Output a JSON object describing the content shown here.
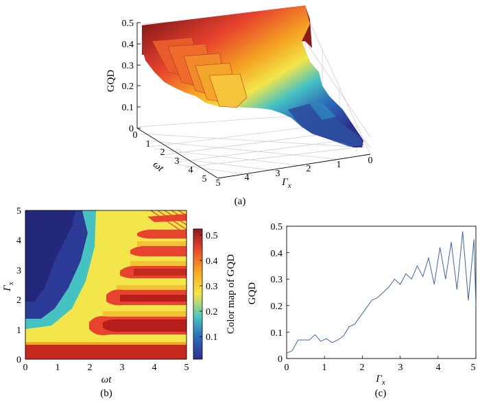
{
  "panels": {
    "a": {
      "caption": "(a)"
    },
    "b": {
      "caption": "(b)"
    },
    "c": {
      "caption": "(c)"
    }
  },
  "chart_data": [
    {
      "id": "a",
      "type": "surface3d",
      "xlabel": "ωt",
      "ylabel": "Γx",
      "zlabel": "GQD",
      "x_ticks": [
        "0",
        "1",
        "2",
        "3",
        "4",
        "5"
      ],
      "y_ticks": [
        "5",
        "4",
        "3",
        "2",
        "1",
        "0"
      ],
      "z_ticks": [
        "0",
        "0.1",
        "0.2",
        "0.3",
        "0.4",
        "0.5"
      ],
      "xlim": [
        0,
        5
      ],
      "ylim": [
        0,
        5
      ],
      "zlim": [
        0,
        0.5
      ],
      "colormap": [
        "#2b2f8f",
        "#2e86c1",
        "#45c2c2",
        "#f2e64a",
        "#f5a623",
        "#e8432e",
        "#8b1a1a"
      ],
      "grid": true
    },
    {
      "id": "b",
      "type": "heatmap",
      "xlabel": "ωt",
      "ylabel": "Γx",
      "colorbar_label": "Color map of GQD",
      "x_ticks": [
        "0",
        "1",
        "2",
        "3",
        "4",
        "5"
      ],
      "y_ticks": [
        "0",
        "1",
        "2",
        "3",
        "4",
        "5"
      ],
      "colorbar_ticks": [
        "0.1",
        "0.2",
        "0.3",
        "0.4",
        "0.5"
      ],
      "xlim": [
        0,
        5
      ],
      "ylim": [
        0,
        5
      ],
      "clim": [
        0,
        0.52
      ],
      "colormap": [
        "#2b2f8f",
        "#2e86c1",
        "#45c2c2",
        "#f2e64a",
        "#f5a623",
        "#e8432e",
        "#8b1a1a"
      ]
    },
    {
      "id": "c",
      "type": "line",
      "xlabel": "Γx",
      "ylabel": "GQD",
      "x_ticks": [
        "0",
        "1",
        "2",
        "3",
        "4",
        "5"
      ],
      "y_ticks": [
        "0",
        "0.1",
        "0.2",
        "0.3",
        "0.4",
        "0.5"
      ],
      "xlim": [
        0,
        5
      ],
      "ylim": [
        0,
        0.5
      ],
      "line_color": "#3b63b0",
      "x": [
        0,
        0.15,
        0.3,
        0.45,
        0.6,
        0.75,
        0.9,
        1.05,
        1.2,
        1.35,
        1.5,
        1.65,
        1.8,
        1.95,
        2.1,
        2.25,
        2.4,
        2.55,
        2.7,
        2.85,
        3.0,
        3.15,
        3.3,
        3.45,
        3.6,
        3.75,
        3.9,
        4.05,
        4.2,
        4.35,
        4.5,
        4.65,
        4.8,
        4.95,
        5.0
      ],
      "y": [
        0.02,
        0.03,
        0.07,
        0.07,
        0.07,
        0.09,
        0.065,
        0.075,
        0.06,
        0.07,
        0.085,
        0.12,
        0.13,
        0.16,
        0.19,
        0.22,
        0.23,
        0.25,
        0.27,
        0.3,
        0.28,
        0.32,
        0.3,
        0.35,
        0.31,
        0.38,
        0.28,
        0.42,
        0.3,
        0.44,
        0.26,
        0.48,
        0.22,
        0.45,
        0.2
      ]
    }
  ]
}
